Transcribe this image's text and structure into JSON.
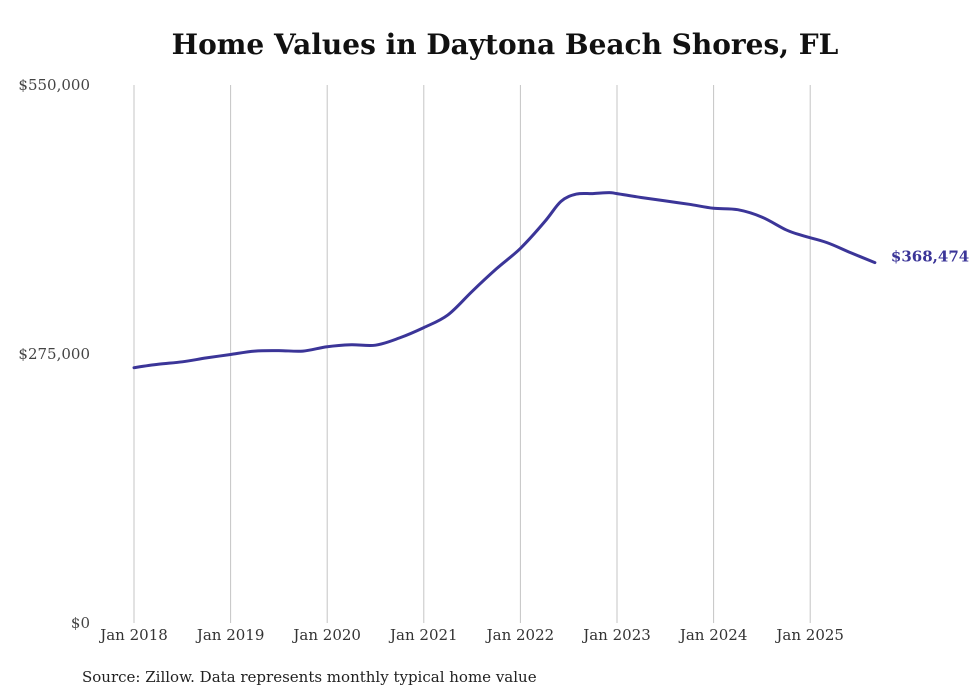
{
  "chart_data": {
    "type": "line",
    "title": "Home Values in Daytona Beach Shores, FL",
    "source": "Source: Zillow. Data represents monthly typical home value",
    "xlabel": "",
    "ylabel": "",
    "ylim": [
      0,
      550000
    ],
    "y_ticks": [
      {
        "value": 0,
        "label": "$0"
      },
      {
        "value": 275000,
        "label": "$275,000"
      },
      {
        "value": 550000,
        "label": "$550,000"
      }
    ],
    "x_ticks": [
      {
        "value": 2018.0,
        "label": "Jan 2018"
      },
      {
        "value": 2019.0,
        "label": "Jan 2019"
      },
      {
        "value": 2020.0,
        "label": "Jan 2020"
      },
      {
        "value": 2021.0,
        "label": "Jan 2021"
      },
      {
        "value": 2022.0,
        "label": "Jan 2022"
      },
      {
        "value": 2023.0,
        "label": "Jan 2023"
      },
      {
        "value": 2024.0,
        "label": "Jan 2024"
      },
      {
        "value": 2025.0,
        "label": "Jan 2025"
      }
    ],
    "xlim": [
      2018.0,
      2025.67
    ],
    "grid": "vertical",
    "series": [
      {
        "name": "Typical home value",
        "color": "#3b3598",
        "end_label": "$368,474",
        "points": [
          [
            2018.0,
            261000
          ],
          [
            2018.25,
            264500
          ],
          [
            2018.5,
            267000
          ],
          [
            2018.75,
            271000
          ],
          [
            2019.0,
            274500
          ],
          [
            2019.25,
            278000
          ],
          [
            2019.5,
            278500
          ],
          [
            2019.75,
            278000
          ],
          [
            2020.0,
            282500
          ],
          [
            2020.25,
            284500
          ],
          [
            2020.5,
            284000
          ],
          [
            2020.75,
            291500
          ],
          [
            2021.0,
            302000
          ],
          [
            2021.25,
            315000
          ],
          [
            2021.5,
            339000
          ],
          [
            2021.75,
            362000
          ],
          [
            2022.0,
            383000
          ],
          [
            2022.25,
            410000
          ],
          [
            2022.42,
            431000
          ],
          [
            2022.58,
            438500
          ],
          [
            2022.75,
            439000
          ],
          [
            2022.92,
            440000
          ],
          [
            2023.0,
            439000
          ],
          [
            2023.25,
            435000
          ],
          [
            2023.5,
            431500
          ],
          [
            2023.75,
            428000
          ],
          [
            2024.0,
            424000
          ],
          [
            2024.25,
            422500
          ],
          [
            2024.5,
            415000
          ],
          [
            2024.75,
            402000
          ],
          [
            2024.92,
            396000
          ],
          [
            2025.17,
            389000
          ],
          [
            2025.42,
            378500
          ],
          [
            2025.67,
            368474
          ]
        ]
      }
    ]
  }
}
